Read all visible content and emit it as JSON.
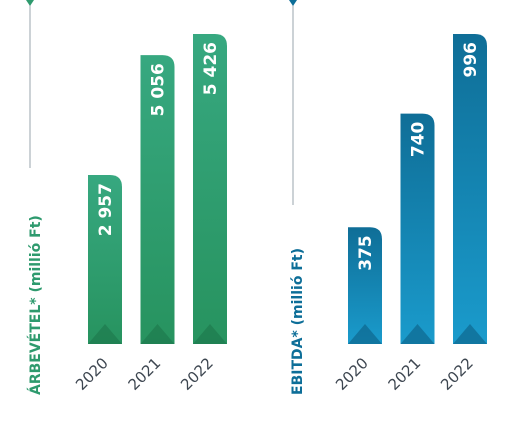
{
  "chart_data": [
    {
      "type": "bar",
      "ylabel": "ÁRBEVÉTEL* (millió Ft)",
      "categories": [
        "2020",
        "2021",
        "2022"
      ],
      "values": [
        2957,
        5056,
        5426
      ],
      "value_labels": [
        "2 957",
        "5 056",
        "5 426"
      ],
      "accent": "#2e9a6e",
      "colors": {
        "top": "#37a880",
        "bottom": "#27935f",
        "shade": "#1c7248",
        "label": "#2e9a6e"
      }
    },
    {
      "type": "bar",
      "ylabel": "EBITDA* (millió Ft)",
      "categories": [
        "2020",
        "2021",
        "2022"
      ],
      "values": [
        375,
        740,
        996
      ],
      "value_labels": [
        "375",
        "740",
        "996"
      ],
      "accent": "#0d6e98",
      "colors": {
        "top": "#0f6e97",
        "bottom": "#1a9bcc",
        "shade": "#0b5a7e",
        "label": "#0d6e98"
      }
    }
  ]
}
